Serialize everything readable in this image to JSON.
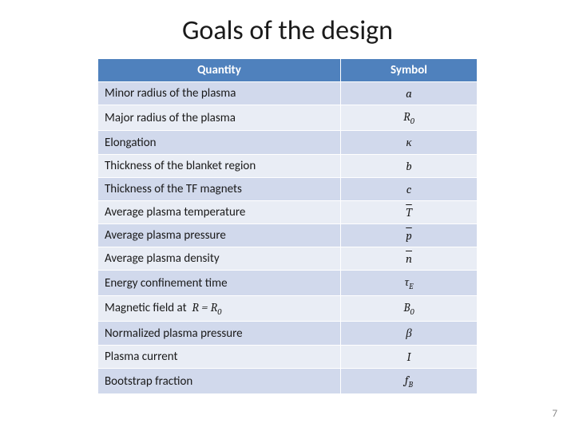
{
  "title": "Goals of the design",
  "page_number": "7",
  "table": {
    "header": {
      "quantity": "Quantity",
      "symbol": "Symbol"
    },
    "header_bg": "#4f81bd",
    "header_fg": "#ffffff",
    "row_odd_bg": "#d1d9ec",
    "row_even_bg": "#e9edf5",
    "rows": [
      {
        "quantity": "Minor radius of the plasma",
        "symbol_html": "a"
      },
      {
        "quantity": "Major radius of the plasma",
        "symbol_html": "R<span class=\"sub\">0</span>"
      },
      {
        "quantity": "Elongation",
        "symbol_html": "κ"
      },
      {
        "quantity": "Thickness of the blanket region",
        "symbol_html": "b"
      },
      {
        "quantity": "Thickness of the TF magnets",
        "symbol_html": "c"
      },
      {
        "quantity": "Average plasma temperature",
        "symbol_html": "<span class=\"overline\">T</span>"
      },
      {
        "quantity": "Average plasma pressure",
        "symbol_html": "<span class=\"overline\">p</span>"
      },
      {
        "quantity": "Average plasma density",
        "symbol_html": "<span class=\"overline\">n</span>"
      },
      {
        "quantity": "Energy confinement time",
        "symbol_html": "τ<span class=\"sub\">E</span>"
      },
      {
        "quantity_html": "Magnetic field at &nbsp;<span class=\"inline-eq\">R = R<span class=\"sub\">0</span></span>",
        "symbol_html": "B<span class=\"sub\">0</span>"
      },
      {
        "quantity": "Normalized plasma pressure",
        "symbol_html": "β"
      },
      {
        "quantity": "Plasma current",
        "symbol_html": "I"
      },
      {
        "quantity": "Bootstrap fraction",
        "symbol_html": "f<span class=\"sub\">B</span>"
      }
    ]
  }
}
